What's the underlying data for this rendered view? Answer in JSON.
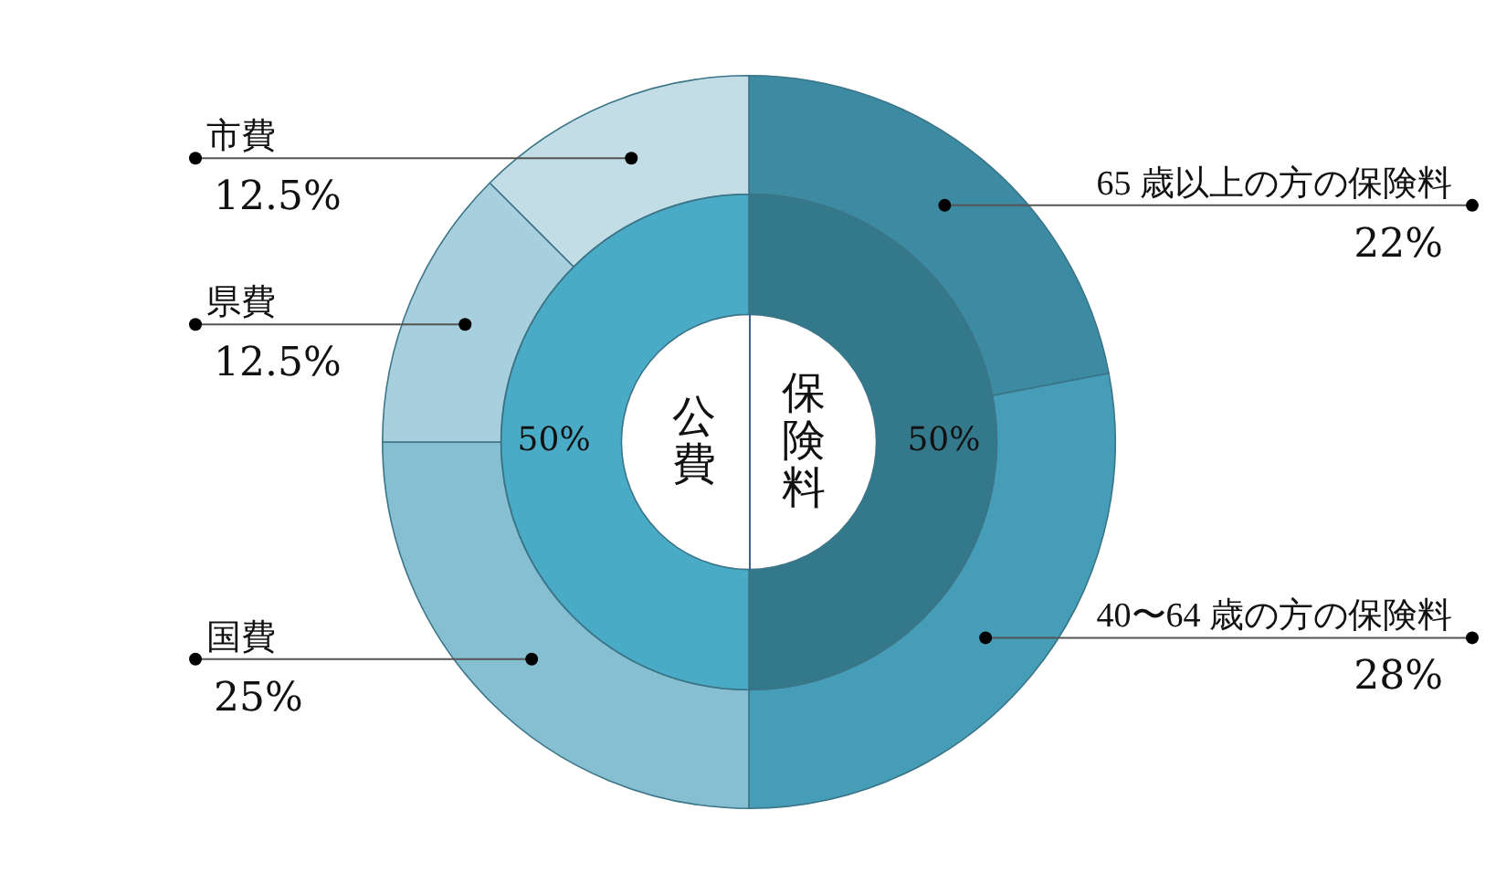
{
  "chart_data": [
    {
      "type": "donut",
      "categories": [
        "保険料",
        "公費"
      ],
      "values": [
        50,
        50
      ],
      "colors": [
        "#34798b",
        "#4aabc6"
      ],
      "value_labels": [
        "50%",
        "50%"
      ]
    },
    {
      "type": "donut",
      "categories": [
        "65 歳以上の方の保険料",
        "40〜64 歳の方の保険料",
        "国費",
        "県費",
        "市費"
      ],
      "values": [
        22,
        28,
        25,
        12.5,
        12.5
      ],
      "colors": [
        "#3c8ba3",
        "#459db7",
        "#86bfd2",
        "#a8cfdd",
        "#c3dde6"
      ],
      "value_labels": [
        "22%",
        "28%",
        "25%",
        "12.5%",
        "12.5%"
      ]
    }
  ]
}
